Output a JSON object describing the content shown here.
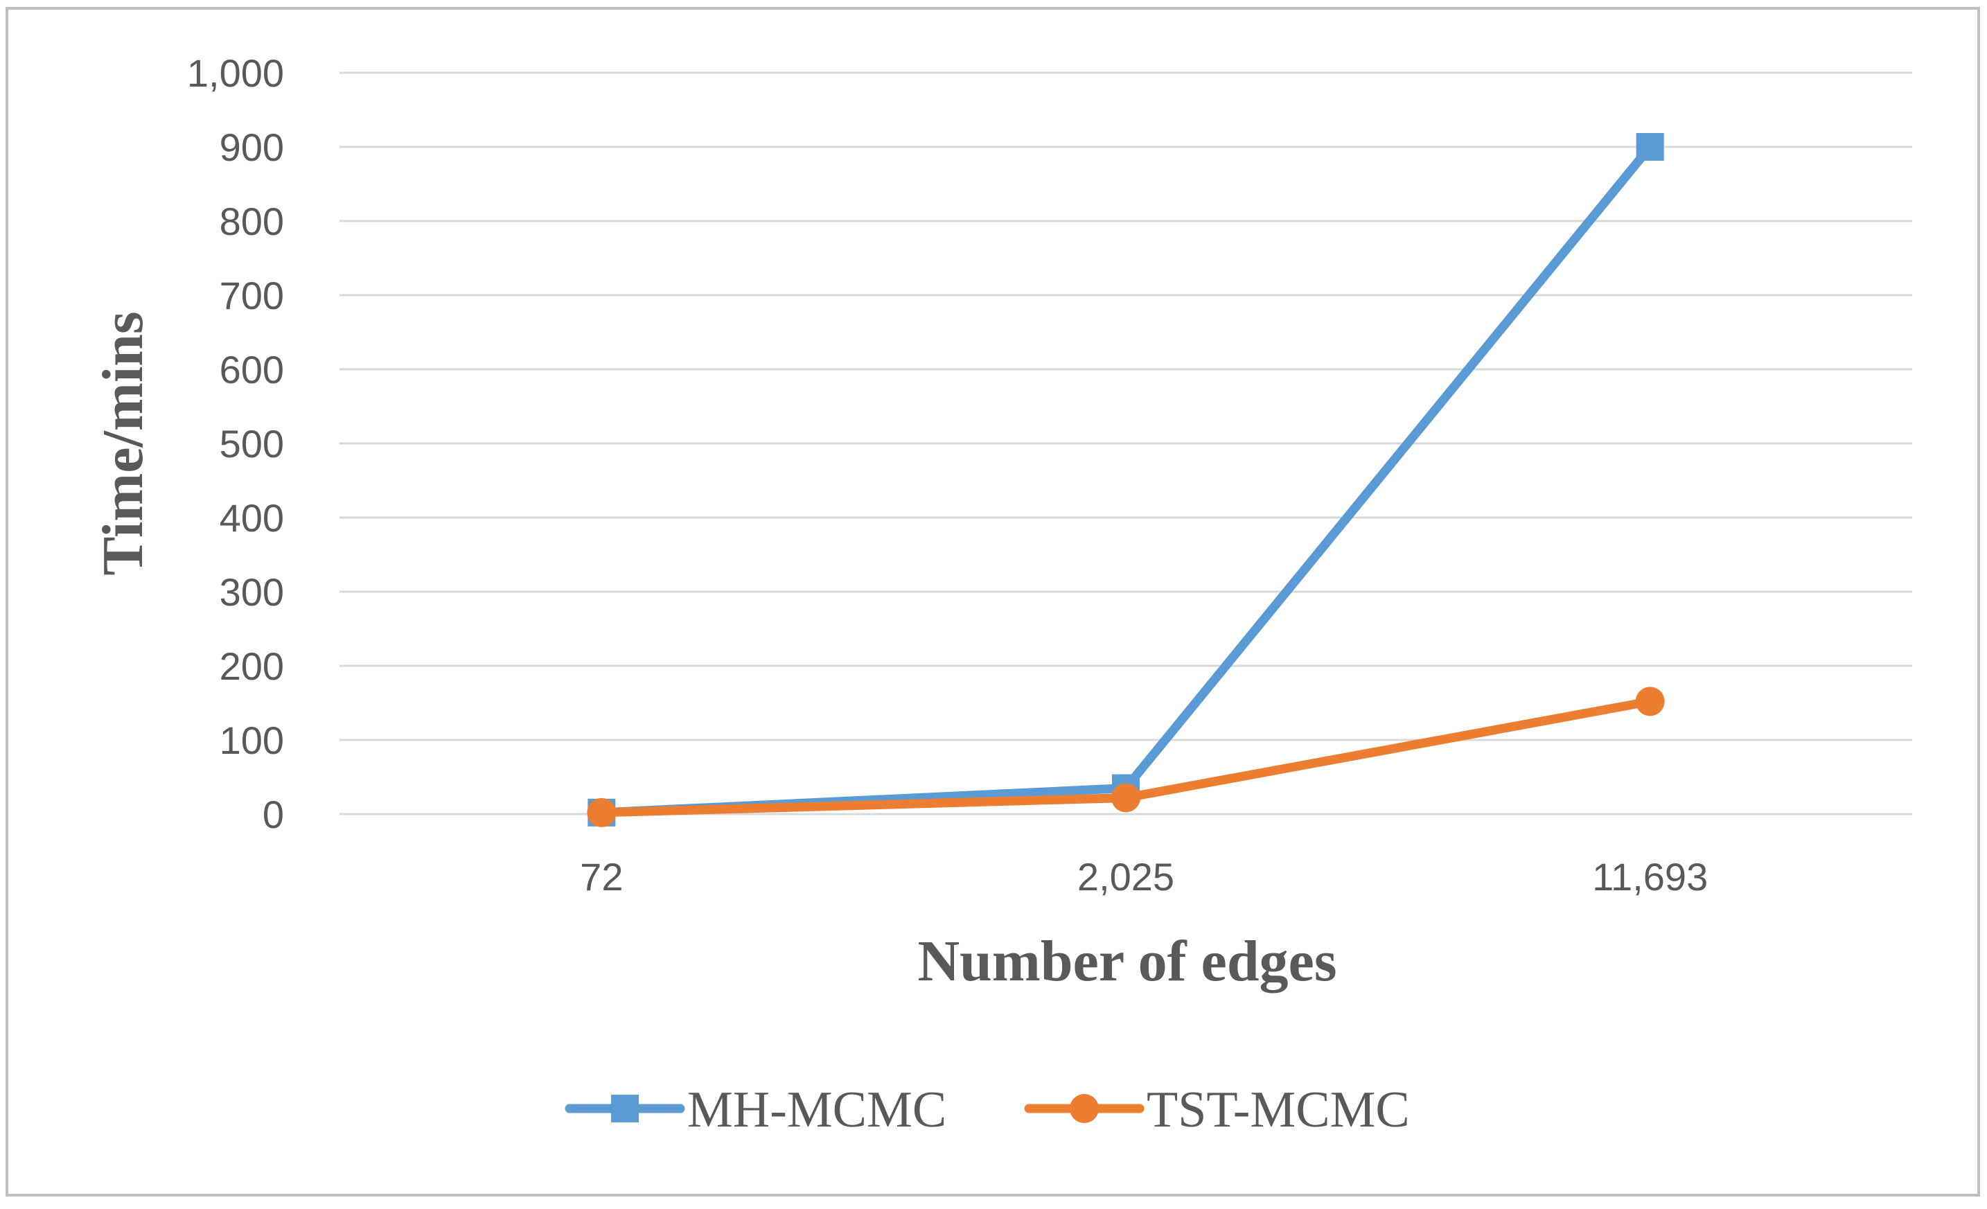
{
  "chart_data": {
    "type": "line",
    "title": "",
    "xlabel": "Number of edges",
    "ylabel": "Time/mins",
    "categories": [
      "72",
      "2,025",
      "11,693"
    ],
    "series": [
      {
        "name": "MH-MCMC",
        "values": [
          2,
          35,
          900
        ],
        "color": "#5B9BD5",
        "marker": "square"
      },
      {
        "name": "TST-MCMC",
        "values": [
          2,
          22,
          152
        ],
        "color": "#ED7D31",
        "marker": "circle"
      }
    ],
    "ylim": [
      0,
      1000
    ],
    "yticks": [
      0,
      100,
      200,
      300,
      400,
      500,
      600,
      700,
      800,
      900,
      1000
    ],
    "ytick_labels": [
      "0",
      "100",
      "200",
      "300",
      "400",
      "500",
      "600",
      "700",
      "800",
      "900",
      "1,000"
    ],
    "grid": true,
    "legend": "bottom-center",
    "gridline_color": "#D9D9D9",
    "border_color": "#BFBFBF"
  }
}
